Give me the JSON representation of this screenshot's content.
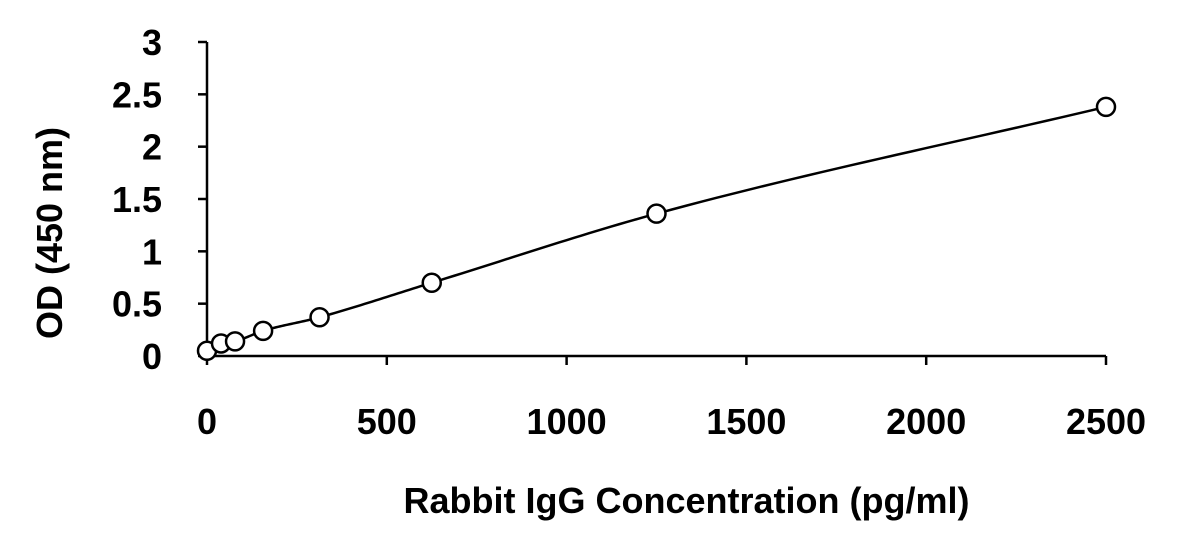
{
  "chart_data": {
    "type": "scatter",
    "title": "",
    "xlabel": "Rabbit IgG Concentration (pg/ml)",
    "ylabel": "OD (450 nm)",
    "xlim": [
      0,
      2500
    ],
    "ylim": [
      0,
      3
    ],
    "x_ticks": [
      0,
      500,
      1000,
      1500,
      2000,
      2500
    ],
    "y_ticks": [
      0,
      0.5,
      1,
      1.5,
      2,
      2.5,
      3
    ],
    "x_tick_labels": [
      "0",
      "500",
      "1000",
      "1500",
      "2000",
      "2500"
    ],
    "y_tick_labels": [
      "0",
      "0.5",
      "1",
      "1.5",
      "2",
      "2.5",
      "3"
    ],
    "grid": false,
    "legend": "none",
    "series": [
      {
        "marker": "open-circle",
        "fit": "smooth-curve",
        "x": [
          0,
          39,
          78,
          156,
          313,
          625,
          1250,
          2500
        ],
        "y": [
          0.05,
          0.12,
          0.14,
          0.24,
          0.37,
          0.7,
          1.36,
          2.38
        ]
      }
    ]
  }
}
